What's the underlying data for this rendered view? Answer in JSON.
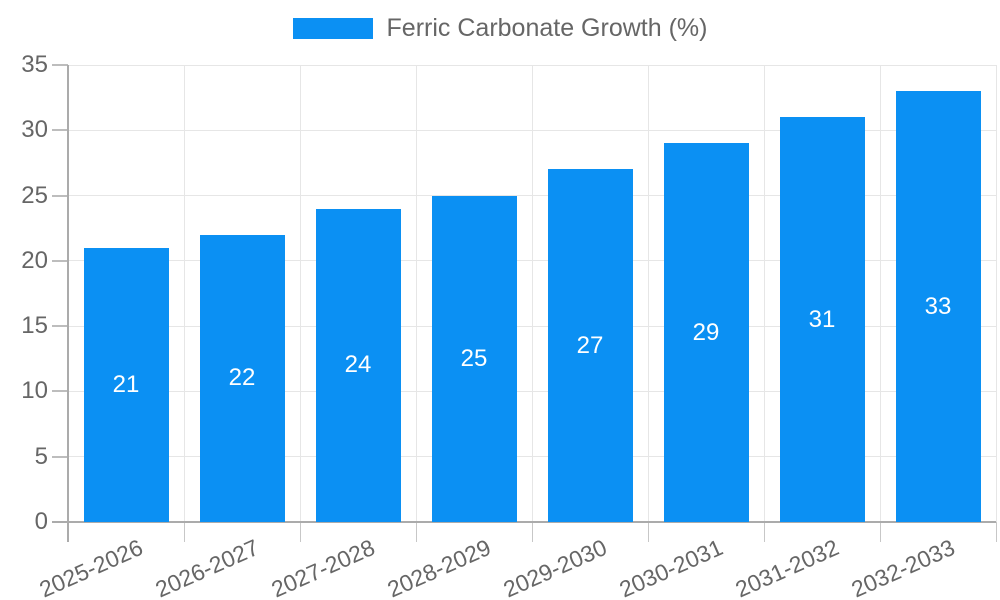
{
  "legend": {
    "label": "Ferric Carbonate Growth (%)",
    "swatch_color": "#0b90f3"
  },
  "chart_data": {
    "type": "bar",
    "title": "Ferric Carbonate Growth (%)",
    "categories": [
      "2025-2026",
      "2026-2027",
      "2027-2028",
      "2028-2029",
      "2029-2030",
      "2030-2031",
      "2031-2032",
      "2032-2033"
    ],
    "values": [
      21,
      22,
      24,
      25,
      27,
      29,
      31,
      33
    ],
    "xlabel": "",
    "ylabel": "",
    "ylim": [
      0,
      35
    ],
    "ytick_step": 5,
    "grid": true,
    "legend_position": "top",
    "bar_color": "#0b90f3",
    "bar_label_color": "#ffffff",
    "axis_text_color": "#666666",
    "grid_color": "#e6e6e6",
    "axis_line_color": "#ababab"
  }
}
